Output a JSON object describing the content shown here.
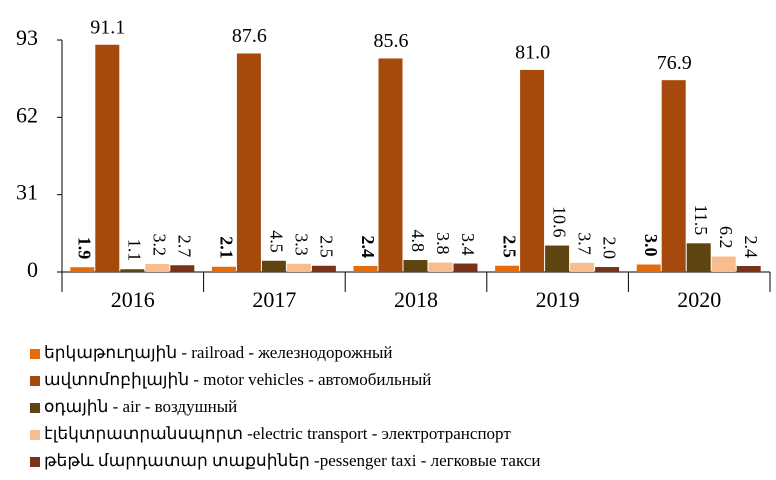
{
  "chart_data": {
    "type": "bar",
    "categories": [
      "2016",
      "2017",
      "2018",
      "2019",
      "2020"
    ],
    "series": [
      {
        "name": "երկաթուղային - railroad - железнодорожный",
        "color": "#e46c0a",
        "values": [
          1.9,
          2.1,
          2.4,
          2.5,
          3.0
        ],
        "value_labels": [
          "1.9",
          "2.1",
          "2.4",
          "2.5",
          "3.0"
        ]
      },
      {
        "name": "ավտոմոբիլային - motor vehicles - автомобильный",
        "color": "#a54a0c",
        "values": [
          91.1,
          87.6,
          85.6,
          81.0,
          76.9
        ],
        "value_labels": [
          "91.1",
          "87.6",
          "85.6",
          "81.0",
          "76.9"
        ]
      },
      {
        "name": "օդային - air - воздушный",
        "color": "#5e4410",
        "values": [
          1.1,
          4.5,
          4.8,
          10.6,
          11.5
        ],
        "value_labels": [
          "1.1",
          "4.5",
          "4.8",
          "10.6",
          "11.5"
        ]
      },
      {
        "name": "էլեկտրատրանսպորտ -electric transport - электротранспорт",
        "color": "#f8bd8e",
        "values": [
          3.2,
          3.3,
          3.8,
          3.7,
          6.2
        ],
        "value_labels": [
          "3.2",
          "3.3",
          "3.8",
          "3.7",
          "6.2"
        ]
      },
      {
        "name": "թեթև մարդատար տաքսիներ -pessenger taxi - легковые такси",
        "color": "#7a3318",
        "values": [
          2.7,
          2.5,
          3.4,
          2.0,
          2.4
        ],
        "value_labels": [
          "2.7",
          "2.5",
          "3.4",
          "2.0",
          "2.4"
        ]
      }
    ],
    "ylim": [
      0,
      93
    ],
    "yticks": [
      0,
      31,
      62,
      93
    ],
    "grid": false
  }
}
